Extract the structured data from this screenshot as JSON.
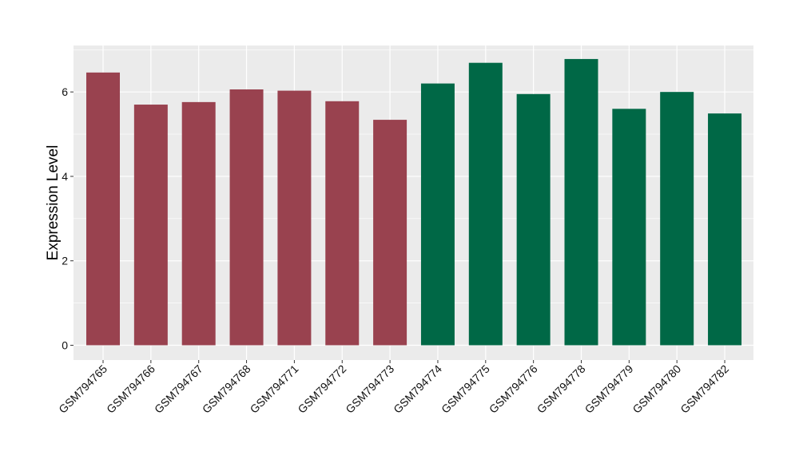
{
  "chart_data": {
    "type": "bar",
    "title": "",
    "xlabel": "",
    "ylabel": "Expression Level",
    "categories": [
      "GSM794765",
      "GSM794766",
      "GSM794767",
      "GSM794768",
      "GSM794771",
      "GSM794772",
      "GSM794773",
      "GSM794774",
      "GSM794775",
      "GSM794776",
      "GSM794778",
      "GSM794779",
      "GSM794780",
      "GSM794782"
    ],
    "values": [
      6.46,
      5.7,
      5.76,
      6.06,
      6.03,
      5.78,
      5.34,
      6.2,
      6.69,
      5.95,
      6.78,
      5.6,
      6.0,
      5.49
    ],
    "groups": [
      0,
      0,
      0,
      0,
      0,
      0,
      0,
      1,
      1,
      1,
      1,
      1,
      1,
      1
    ],
    "group_colors": [
      "#99424f",
      "#006846"
    ],
    "ylim": [
      -0.35,
      7.1
    ],
    "yticks": [
      0,
      2,
      4,
      6
    ],
    "grid": true,
    "panel_background": "#ebebeb",
    "grid_color": "#ffffff",
    "legend": "none"
  }
}
